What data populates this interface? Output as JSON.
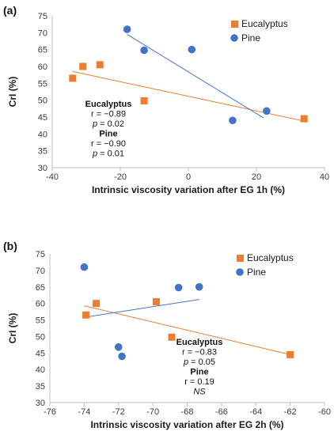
{
  "colors": {
    "eucalyptus": "#ED7D31",
    "pine": "#4472C4",
    "axis": "#bfbfbf"
  },
  "chart_data": [
    {
      "type": "scatter",
      "panel_label": "(a)",
      "xlabel": "Intrinsic viscosity variation after EG 1h (%)",
      "ylabel": "CrI (%)",
      "xlim": [
        -40,
        40
      ],
      "ylim": [
        30,
        75
      ],
      "xticks": [
        -40,
        -20,
        0,
        20,
        40
      ],
      "yticks": [
        30,
        35,
        40,
        45,
        50,
        55,
        60,
        65,
        70,
        75
      ],
      "legend_position": "top-right",
      "grid": false,
      "series": [
        {
          "name": "Eucalyptus",
          "marker": "square",
          "color": "#ED7D31",
          "x": [
            -34,
            -31,
            -26,
            -13,
            34
          ],
          "y": [
            56.5,
            60,
            60.5,
            49.8,
            44.5
          ],
          "trendline": [
            [
              -34,
              58.5
            ],
            [
              34,
              43.8
            ]
          ]
        },
        {
          "name": "Pine",
          "marker": "circle",
          "color": "#4472C4",
          "x": [
            -18,
            -13,
            1,
            13,
            23
          ],
          "y": [
            71,
            64.8,
            65,
            44,
            46.8
          ],
          "trendline": [
            [
              -18,
              69.5
            ],
            [
              22,
              44.8
            ]
          ]
        }
      ],
      "annotation": [
        {
          "text": "Eucalyptus",
          "style": "bold"
        },
        {
          "text": "r = −0.89",
          "style": "normal"
        },
        {
          "text": "p = 0.02",
          "style": "pvalue"
        },
        {
          "text": "Pine",
          "style": "bold"
        },
        {
          "text": "r = −0.90",
          "style": "normal"
        },
        {
          "text": "p = 0.01",
          "style": "pvalue"
        }
      ]
    },
    {
      "type": "scatter",
      "panel_label": "(b)",
      "xlabel": "Intrinsic viscosity variation after EG 2h (%)",
      "ylabel": "CrI (%)",
      "xlim": [
        -76,
        -60
      ],
      "ylim": [
        30,
        75
      ],
      "xticks": [
        -76,
        -74,
        -72,
        -70,
        -68,
        -66,
        -64,
        -62,
        -60
      ],
      "yticks": [
        30,
        35,
        40,
        45,
        50,
        55,
        60,
        65,
        70,
        75
      ],
      "legend_position": "top-right",
      "grid": false,
      "series": [
        {
          "name": "Eucalyptus",
          "marker": "square",
          "color": "#ED7D31",
          "x": [
            -73.9,
            -73.3,
            -69.8,
            -68.9,
            -62
          ],
          "y": [
            56.5,
            60,
            60.5,
            49.8,
            44.5
          ],
          "trendline": [
            [
              -74,
              59.3
            ],
            [
              -62,
              44.5
            ]
          ]
        },
        {
          "name": "Pine",
          "marker": "circle",
          "color": "#4472C4",
          "x": [
            -74,
            -72,
            -71.8,
            -68.5,
            -67.3
          ],
          "y": [
            71,
            46.8,
            44,
            64.8,
            65
          ],
          "trendline": [
            [
              -74,
              55.8
            ],
            [
              -67.3,
              61.2
            ]
          ]
        }
      ],
      "annotation": [
        {
          "text": "Eucalyptus",
          "style": "bold"
        },
        {
          "text": "r = −0.83",
          "style": "normal"
        },
        {
          "text": "p = 0.05",
          "style": "pvalue"
        },
        {
          "text": "Pine",
          "style": "bold"
        },
        {
          "text": "r = 0.19",
          "style": "normal"
        },
        {
          "text": "NS",
          "style": "italic"
        }
      ]
    }
  ]
}
